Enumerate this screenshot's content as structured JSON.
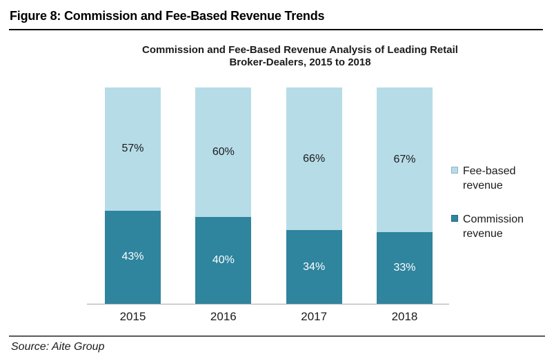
{
  "page": {
    "figure_title": "Figure 8: Commission and Fee-Based Revenue Trends",
    "source_note": "Source: Aite Group"
  },
  "chart_data": {
    "type": "bar",
    "variant": "stacked-100pct",
    "title": "Commission and Fee-Based Revenue Analysis of Leading Retail Broker-Dealers, 2015 to 2018",
    "title_lines": [
      "Commission and Fee-Based Revenue Analysis of Leading Retail",
      "Broker-Dealers, 2015 to 2018"
    ],
    "categories": [
      "2015",
      "2016",
      "2017",
      "2018"
    ],
    "series": [
      {
        "name": "Commission revenue",
        "stack_position": "bottom",
        "values": [
          43,
          40,
          34,
          33
        ],
        "color": "#2F849E",
        "label_color": "#FFFFFF"
      },
      {
        "name": "Fee-based revenue",
        "stack_position": "top",
        "values": [
          57,
          60,
          66,
          67
        ],
        "color": "#B6DCE8",
        "label_color": "#1A1A1A"
      }
    ],
    "value_suffix": "%",
    "ylim": [
      0,
      100
    ],
    "grid": false,
    "legend_position": "right",
    "legend_order": [
      "Fee-based revenue",
      "Commission revenue"
    ],
    "colors": {
      "axis_line": "#A6A6A6",
      "header_rule": "#000000",
      "footer_rule": "#595959"
    }
  }
}
